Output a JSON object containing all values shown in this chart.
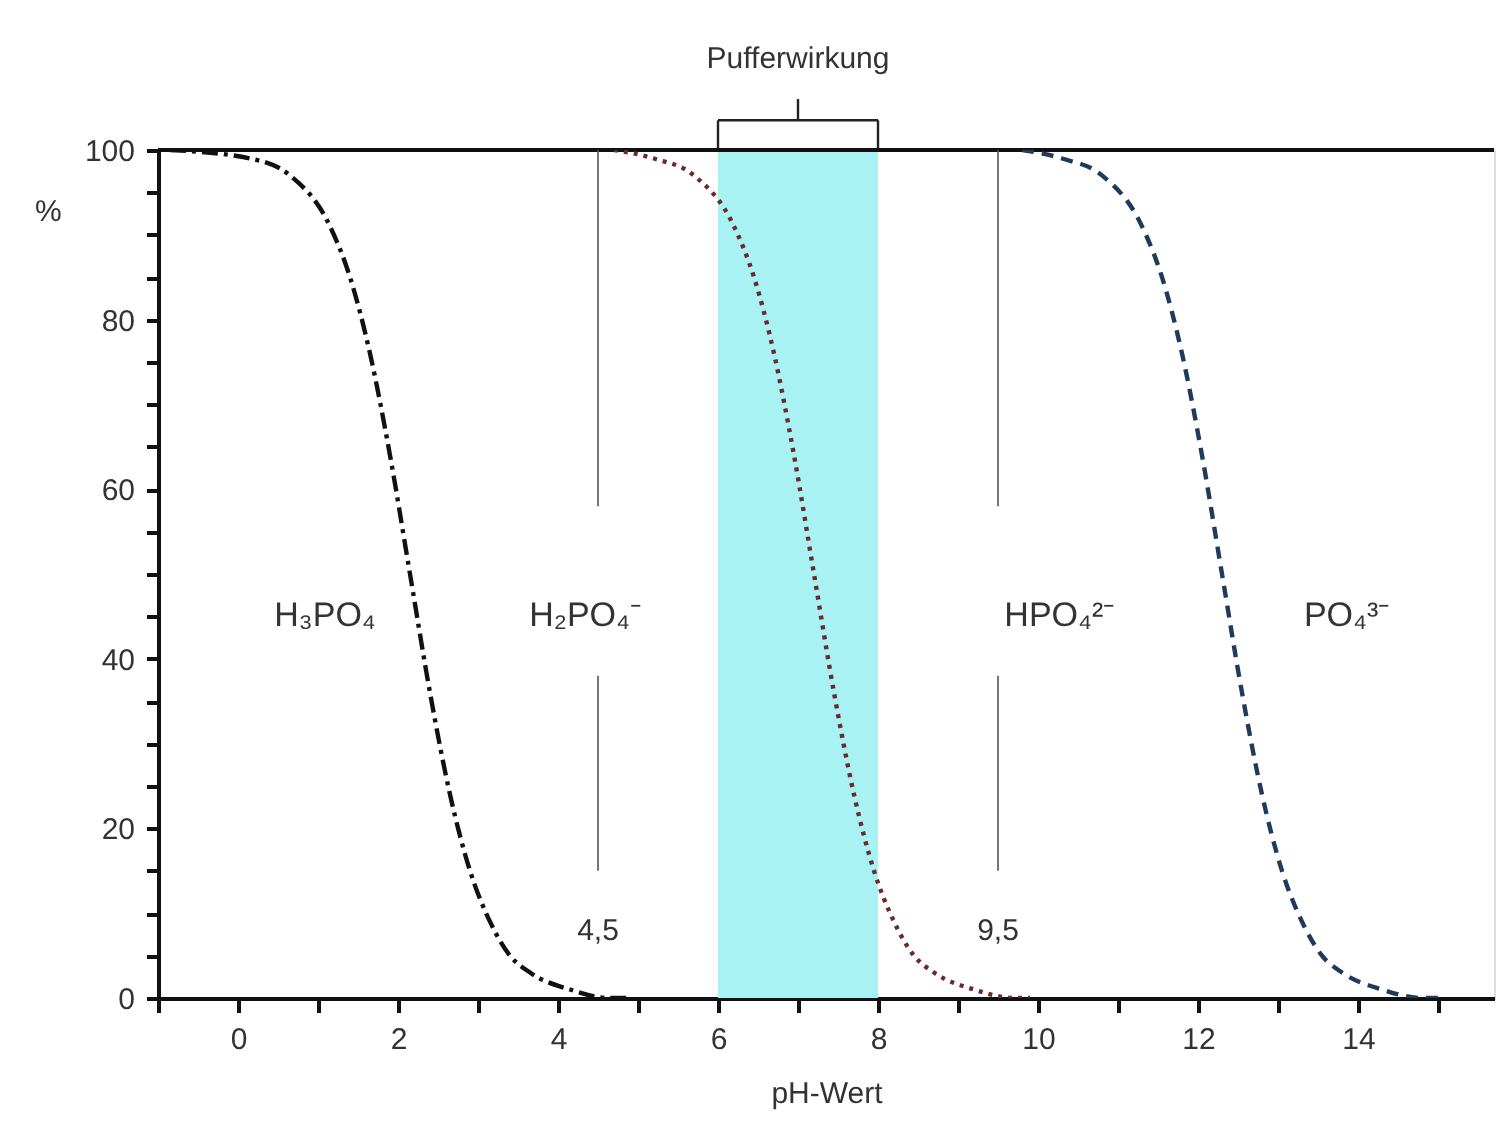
{
  "chart_data": {
    "type": "line",
    "xlabel": "pH-Wert",
    "ylabel": "%",
    "xlim": [
      -1,
      15.7
    ],
    "ylim": [
      0,
      100
    ],
    "xticks": [
      {
        "value": -1,
        "label": null
      },
      0,
      {
        "value": 1,
        "label": null
      },
      2,
      {
        "value": 3,
        "label": null
      },
      4,
      {
        "value": 5,
        "label": null
      },
      6,
      {
        "value": 7,
        "label": null
      },
      8,
      {
        "value": 9,
        "label": null
      },
      10,
      {
        "value": 11,
        "label": null
      },
      12,
      {
        "value": 13,
        "label": null
      },
      14,
      {
        "value": 15,
        "label": null
      }
    ],
    "yticks": [
      0,
      {
        "value": 5,
        "label": null
      },
      {
        "value": 10,
        "label": null
      },
      {
        "value": 15,
        "label": null
      },
      20,
      {
        "value": 25,
        "label": null
      },
      {
        "value": 30,
        "label": null
      },
      {
        "value": 35,
        "label": null
      },
      40,
      {
        "value": 45,
        "label": null
      },
      {
        "value": 50,
        "label": null
      },
      {
        "value": 55,
        "label": null
      },
      60,
      {
        "value": 65,
        "label": null
      },
      {
        "value": 70,
        "label": null
      },
      {
        "value": 75,
        "label": null
      },
      80,
      {
        "value": 85,
        "label": null
      },
      {
        "value": 90,
        "label": null
      },
      {
        "value": 95,
        "label": null
      },
      100
    ],
    "grid": false,
    "marker": "none",
    "series": [
      {
        "color": "#111111",
        "line_style": "dashdot",
        "x": [
          -0.85,
          0.15,
          0.65,
          1.15,
          1.4,
          1.65,
          1.9,
          2.15,
          2.4,
          2.65,
          2.9,
          3.15,
          3.4,
          3.65,
          4.15,
          4.65,
          4.9
        ],
        "values": [
          100,
          99,
          97,
          91,
          85,
          76,
          64,
          50,
          36,
          24,
          15,
          9,
          5,
          3,
          1,
          0,
          0
        ]
      },
      {
        "color": "#6a2a2a",
        "line_style": "dotted",
        "x": [
          4.7,
          5.2,
          5.7,
          6.2,
          6.45,
          6.7,
          6.95,
          7.2,
          7.45,
          7.7,
          7.95,
          8.2,
          8.45,
          8.7,
          9.2,
          9.7,
          9.9
        ],
        "values": [
          100,
          99,
          97,
          91,
          85,
          76,
          64,
          50,
          36,
          24,
          15,
          9,
          5,
          3,
          1,
          0,
          0
        ]
      },
      {
        "color": "#1f3a5a",
        "line_style": "dashed",
        "x": [
          9.8,
          10.3,
          10.8,
          11.3,
          11.55,
          11.8,
          12.05,
          12.3,
          12.55,
          12.8,
          13.05,
          13.3,
          13.55,
          13.8,
          14.3,
          14.8,
          15.0
        ],
        "values": [
          100,
          99,
          97,
          91,
          85,
          76,
          64,
          50,
          36,
          24,
          15,
          9,
          5,
          3,
          1,
          0,
          0
        ]
      }
    ],
    "bands": [
      {
        "axis": "x",
        "from": 6,
        "to": 8,
        "label": "Pufferwirkung",
        "color": "#a8f2f4"
      }
    ],
    "ref_lines": [
      {
        "axis": "x",
        "value": 4.5,
        "label": "4,5",
        "color": "#555555",
        "line_style": "solid"
      },
      {
        "axis": "x",
        "value": 9.5,
        "label": "9,5",
        "color": "#555555",
        "line_style": "solid"
      }
    ],
    "annotations": [
      "H₃PO₄",
      "H₂PO₄⁻",
      "HPO₄²⁻",
      "PO₄³⁻"
    ]
  }
}
